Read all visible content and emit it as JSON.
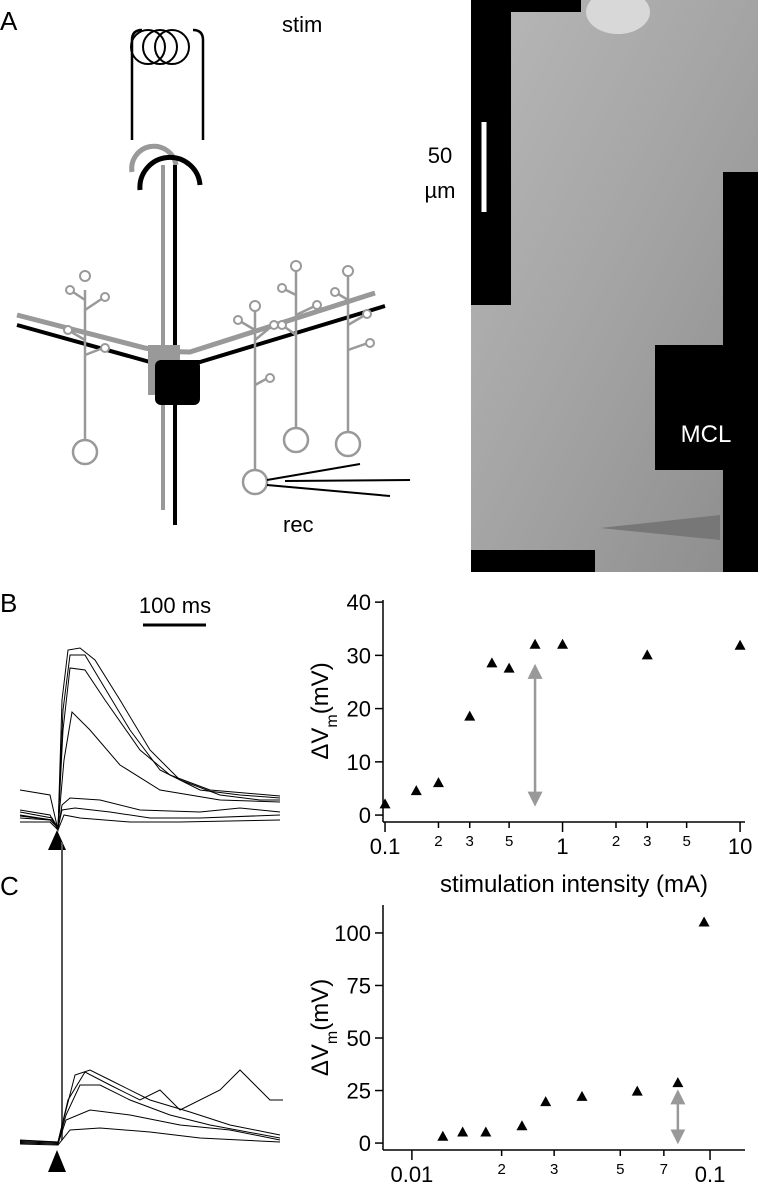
{
  "panels": [
    "A",
    "B",
    "C"
  ],
  "diagram": {
    "stim": "stim",
    "rec": "rec"
  },
  "image": {
    "scale_value": "50",
    "scale_unit": "µm",
    "label": "MCL"
  },
  "traces": {
    "scale": "100 ms"
  },
  "chart_data": [
    {
      "type": "scatter",
      "log_x": true,
      "color": "#000000",
      "xlabel": "stimulation intensity (mA)",
      "ylabel": [
        "ΔV",
        "m",
        "(mV)"
      ],
      "x": [
        0.1,
        0.15,
        0.2,
        0.3,
        0.4,
        0.5,
        0.7,
        1,
        3,
        10
      ],
      "values": [
        2,
        4.5,
        6,
        18.5,
        28.5,
        27.5,
        32,
        32,
        30,
        31.8
      ],
      "xlim": [
        0.0974,
        10.66
      ],
      "ylim": [
        -1.3,
        40.4
      ],
      "xticks": [
        0.1,
        {
          "value": 0.2,
          "label": "2"
        },
        {
          "value": 0.3,
          "label": "3"
        },
        {
          "value": 0.5,
          "label": "5"
        },
        1,
        {
          "value": 2,
          "label": "2"
        },
        {
          "value": 3,
          "label": "3"
        },
        {
          "value": 5,
          "label": "5"
        },
        10
      ],
      "yticks": [
        0,
        10,
        20,
        30,
        40
      ],
      "arrow": {
        "x": 0.7,
        "y": [
          3,
          27
        ],
        "color": "#999999"
      }
    },
    {
      "type": "scatter",
      "log_x": true,
      "color": "#000000",
      "ylabel": [
        "ΔV",
        "m",
        "(mV)"
      ],
      "x": [
        0.0127,
        0.0148,
        0.0177,
        0.0234,
        0.0281,
        0.0372,
        0.057,
        0.078,
        0.0955
      ],
      "values": [
        3,
        5,
        5,
        8,
        19.5,
        22,
        24.5,
        28.5,
        105
      ],
      "xlim": [
        0.008,
        0.131
      ],
      "ylim": [
        -3.3,
        113.3
      ],
      "xticks": [
        0.01,
        {
          "value": 0.02,
          "label": "2"
        },
        {
          "value": 0.03,
          "label": "3"
        },
        {
          "value": 0.05,
          "label": "5"
        },
        {
          "value": 0.07,
          "label": "7"
        },
        0.1
      ],
      "yticks": [
        0,
        25,
        50,
        75,
        100
      ],
      "arrow": {
        "x": 0.078,
        "y": [
          3,
          22
        ],
        "color": "#999999"
      }
    }
  ]
}
